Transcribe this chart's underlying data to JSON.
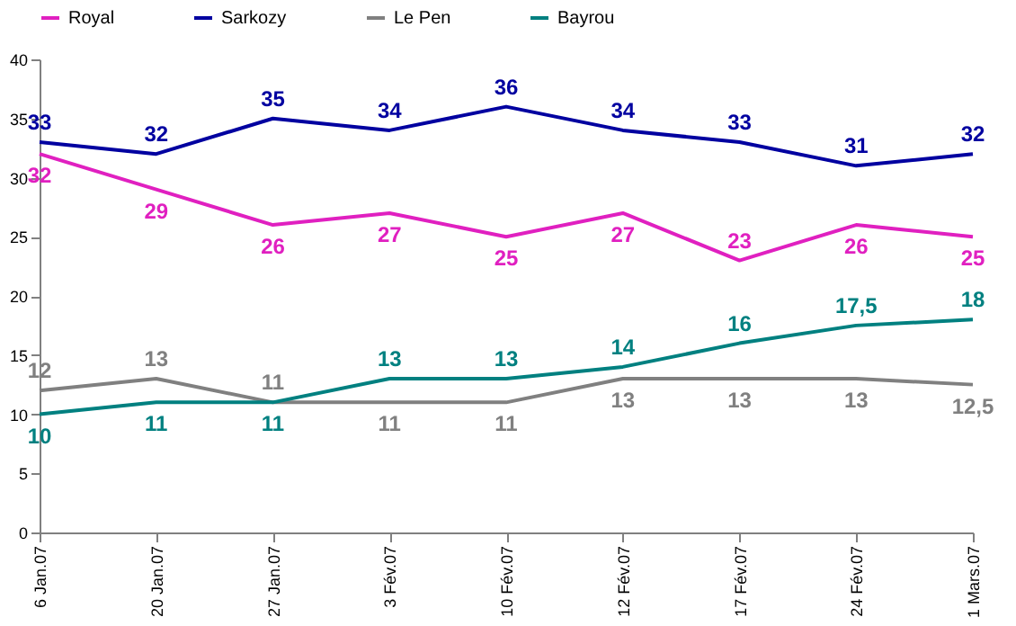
{
  "chart_data": {
    "type": "line",
    "categories": [
      "6 Jan.07",
      "20 Jan.07",
      "27 Jan.07",
      "3 Fév.07",
      "10 Fév.07",
      "12 Fév.07",
      "17 Fév.07",
      "24 Fév.07",
      "1 Mars.07"
    ],
    "ylim": [
      0,
      40
    ],
    "yticks": [
      0,
      5,
      10,
      15,
      20,
      25,
      30,
      35,
      40
    ],
    "grid": false,
    "legend": "top",
    "marker": "none",
    "line_style": "solid",
    "series": [
      {
        "name": "Royal",
        "color": "#e020c0",
        "values": [
          32,
          29,
          26,
          27,
          25,
          27,
          23,
          26,
          25
        ],
        "value_labels": [
          "32",
          "29",
          "26",
          "27",
          "25",
          "27",
          "23",
          "26",
          "25"
        ]
      },
      {
        "name": "Sarkozy",
        "color": "#0000a0",
        "values": [
          33,
          32,
          35,
          34,
          36,
          34,
          33,
          31,
          32
        ],
        "value_labels": [
          "33",
          "32",
          "35",
          "34",
          "36",
          "34",
          "33",
          "31",
          "32"
        ]
      },
      {
        "name": "Le Pen",
        "color": "#808080",
        "values": [
          12,
          13,
          11,
          11,
          11,
          13,
          13,
          13,
          12.5
        ],
        "value_labels": [
          "12",
          "13",
          "11",
          "11",
          "11",
          "13",
          "13",
          "13",
          "12,5"
        ]
      },
      {
        "name": "Bayrou",
        "color": "#008080",
        "values": [
          10,
          11,
          11,
          13,
          13,
          14,
          16,
          17.5,
          18
        ],
        "value_labels": [
          "10",
          "11",
          "11",
          "13",
          "13",
          "14",
          "16",
          "17,5",
          "18"
        ]
      }
    ]
  }
}
